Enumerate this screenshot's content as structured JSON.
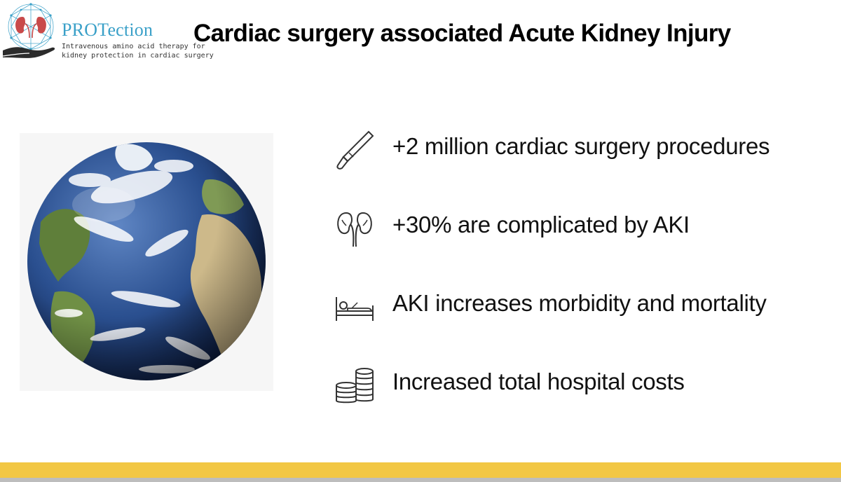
{
  "logo": {
    "name": "PROTection",
    "tagline_line1": "Intravenous amino acid therapy for",
    "tagline_line2": "kidney protection in cardiac surgery"
  },
  "title": "Cardiac surgery associated Acute Kidney Injury",
  "image": {
    "semantic": "earth-globe-image"
  },
  "bullets": [
    {
      "icon": "scalpel-icon",
      "text": "+2 million cardiac surgery procedures"
    },
    {
      "icon": "kidneys-icon",
      "text": "+30% are complicated by AKI"
    },
    {
      "icon": "hospital-bed-icon",
      "text": "AKI increases morbidity and mortality"
    },
    {
      "icon": "coin-stacks-icon",
      "text": "Increased total hospital costs"
    }
  ],
  "colors": {
    "brand_blue": "#3aa0c8",
    "kidney_red": "#c94a4a",
    "hand_dark": "#2b2b2b",
    "footer_yellow": "#f2c744",
    "footer_grey": "#bdbdbd",
    "ocean_blue": "#1f3f7a",
    "land_green": "#5f7f3a",
    "land_sand": "#cdb98a"
  }
}
